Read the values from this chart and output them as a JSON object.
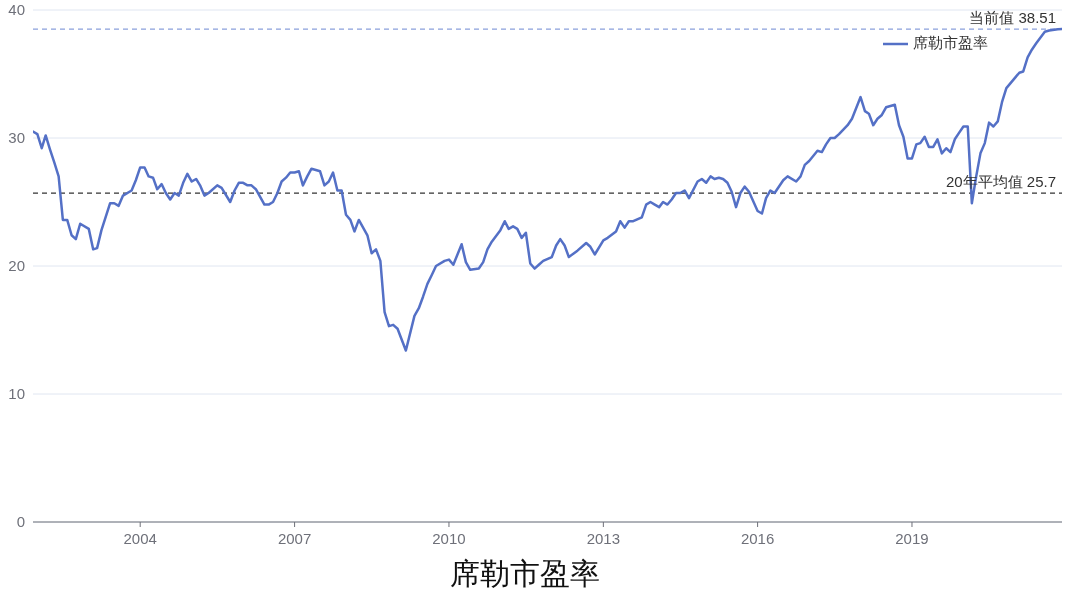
{
  "chart_data": {
    "type": "line",
    "title": "席勒市盈率",
    "x": [
      "2001-12",
      "2002-01",
      "2002-02",
      "2002-03",
      "2002-04",
      "2002-05",
      "2002-06",
      "2002-07",
      "2002-08",
      "2002-09",
      "2002-10",
      "2002-11",
      "2003-01",
      "2003-02",
      "2003-03",
      "2003-04",
      "2003-06",
      "2003-07",
      "2003-08",
      "2003-09",
      "2003-11",
      "2003-12",
      "2004-01",
      "2004-02",
      "2004-03",
      "2004-04",
      "2004-05",
      "2004-06",
      "2004-07",
      "2004-08",
      "2004-09",
      "2004-10",
      "2004-11",
      "2004-12",
      "2005-01",
      "2005-02",
      "2005-03",
      "2005-04",
      "2005-05",
      "2005-07",
      "2005-08",
      "2005-10",
      "2005-11",
      "2005-12",
      "2006-01",
      "2006-02",
      "2006-03",
      "2006-04",
      "2006-06",
      "2006-07",
      "2006-08",
      "2006-09",
      "2006-10",
      "2006-11",
      "2006-12",
      "2007-01",
      "2007-02",
      "2007-03",
      "2007-04",
      "2007-05",
      "2007-06",
      "2007-07",
      "2007-08",
      "2007-09",
      "2007-10",
      "2007-11",
      "2007-12",
      "2008-01",
      "2008-02",
      "2008-03",
      "2008-04",
      "2008-06",
      "2008-07",
      "2008-08",
      "2008-09",
      "2008-10",
      "2008-11",
      "2008-12",
      "2009-01",
      "2009-03",
      "2009-05",
      "2009-06",
      "2009-07",
      "2009-08",
      "2009-09",
      "2009-10",
      "2009-12",
      "2010-01",
      "2010-02",
      "2010-04",
      "2010-05",
      "2010-06",
      "2010-08",
      "2010-09",
      "2010-10",
      "2010-11",
      "2011-01",
      "2011-02",
      "2011-03",
      "2011-04",
      "2011-05",
      "2011-06",
      "2011-07",
      "2011-08",
      "2011-09",
      "2011-10",
      "2011-11",
      "2012-01",
      "2012-02",
      "2012-03",
      "2012-04",
      "2012-05",
      "2012-07",
      "2012-09",
      "2012-10",
      "2012-11",
      "2013-01",
      "2013-02",
      "2013-04",
      "2013-05",
      "2013-06",
      "2013-07",
      "2013-08",
      "2013-10",
      "2013-11",
      "2013-12",
      "2014-01",
      "2014-02",
      "2014-03",
      "2014-04",
      "2014-05",
      "2014-06",
      "2014-07",
      "2014-08",
      "2014-09",
      "2014-11",
      "2014-12",
      "2015-01",
      "2015-02",
      "2015-03",
      "2015-04",
      "2015-05",
      "2015-06",
      "2015-07",
      "2015-08",
      "2015-09",
      "2015-10",
      "2015-11",
      "2016-01",
      "2016-02",
      "2016-03",
      "2016-04",
      "2016-05",
      "2016-07",
      "2016-08",
      "2016-10",
      "2016-11",
      "2016-12",
      "2017-01",
      "2017-03",
      "2017-04",
      "2017-05",
      "2017-06",
      "2017-07",
      "2017-08",
      "2017-10",
      "2017-11",
      "2018-01",
      "2018-02",
      "2018-03",
      "2018-04",
      "2018-05",
      "2018-06",
      "2018-07",
      "2018-09",
      "2018-10",
      "2018-11",
      "2018-12",
      "2019-01",
      "2019-02",
      "2019-03",
      "2019-04",
      "2019-05",
      "2019-06",
      "2019-07",
      "2019-08",
      "2019-09",
      "2019-10",
      "2019-11",
      "2019-12",
      "2020-01",
      "2020-02",
      "2020-03",
      "2020-04",
      "2020-05",
      "2020-06",
      "2020-07",
      "2020-08",
      "2020-09",
      "2020-10",
      "2020-11",
      "2021-01",
      "2021-02",
      "2021-03",
      "2021-04",
      "2021-05",
      "2021-06",
      "2021-08",
      "2021-09",
      "2021-11",
      "2021-12"
    ],
    "series": [
      {
        "name": "席勒市盈率",
        "color": "#5470c6",
        "values": [
          30.5,
          30.3,
          29.2,
          30.2,
          29.1,
          28.1,
          27.0,
          23.6,
          23.6,
          22.4,
          22.1,
          23.3,
          22.9,
          21.3,
          21.4,
          22.8,
          24.9,
          24.9,
          24.7,
          25.5,
          25.9,
          26.7,
          27.7,
          27.7,
          27.0,
          26.9,
          26.0,
          26.4,
          25.7,
          25.2,
          25.7,
          25.5,
          26.5,
          27.2,
          26.6,
          26.8,
          26.3,
          25.5,
          25.7,
          26.3,
          26.1,
          25.0,
          25.9,
          26.5,
          26.5,
          26.3,
          26.3,
          26.0,
          24.8,
          24.8,
          25.0,
          25.7,
          26.6,
          26.9,
          27.3,
          27.3,
          27.4,
          26.3,
          27.0,
          27.6,
          27.5,
          27.4,
          26.3,
          26.6,
          27.3,
          25.9,
          25.9,
          24.0,
          23.6,
          22.7,
          23.6,
          22.4,
          21.0,
          21.3,
          20.4,
          16.4,
          15.3,
          15.4,
          15.1,
          13.4,
          16.1,
          16.7,
          17.6,
          18.6,
          19.3,
          20.0,
          20.4,
          20.5,
          20.1,
          21.7,
          20.3,
          19.7,
          19.8,
          20.3,
          21.3,
          21.9,
          22.8,
          23.5,
          22.9,
          23.1,
          22.9,
          22.2,
          22.6,
          20.2,
          19.8,
          20.1,
          20.4,
          20.7,
          21.6,
          22.1,
          21.6,
          20.7,
          21.2,
          21.8,
          21.5,
          20.9,
          22.0,
          22.2,
          22.7,
          23.5,
          23.0,
          23.5,
          23.5,
          23.8,
          24.8,
          25.0,
          24.8,
          24.6,
          25.0,
          24.8,
          25.2,
          25.7,
          25.7,
          25.9,
          25.3,
          26.6,
          26.8,
          26.5,
          27.0,
          26.8,
          26.9,
          26.8,
          26.5,
          25.8,
          24.6,
          25.7,
          26.2,
          25.8,
          24.3,
          24.1,
          25.3,
          25.9,
          25.7,
          26.7,
          27.0,
          26.6,
          27.0,
          27.9,
          28.2,
          29.0,
          28.9,
          29.5,
          30.0,
          30.0,
          30.3,
          31.0,
          31.5,
          33.2,
          32.1,
          31.9,
          31.0,
          31.5,
          31.8,
          32.4,
          32.6,
          31.0,
          30.1,
          28.4,
          28.4,
          29.5,
          29.6,
          30.1,
          29.3,
          29.3,
          29.9,
          28.8,
          29.2,
          28.9,
          29.9,
          30.4,
          30.9,
          30.9,
          24.9,
          27.0,
          28.8,
          29.6,
          31.2,
          30.9,
          31.3,
          32.8,
          33.9,
          34.7,
          35.1,
          35.2,
          36.3,
          36.9,
          37.4,
          38.3,
          38.4,
          38.5,
          38.51
        ]
      }
    ],
    "xlim": [
      "2001-12",
      "2021-12"
    ],
    "xticks": [
      "2004",
      "2007",
      "2010",
      "2013",
      "2016",
      "2019"
    ],
    "ylim": [
      0,
      40
    ],
    "yticks": [
      0,
      10,
      20,
      30,
      40
    ],
    "grid": "y",
    "legend": "top right",
    "ref_lines": [
      {
        "axis": "y",
        "value": 38.51,
        "label": "当前值 38.51",
        "color": "#8aa0dc",
        "line_style": "dashed"
      },
      {
        "axis": "y",
        "value": 25.7,
        "label": "20年平均值 25.7",
        "color": "#333333",
        "line_style": "dashed"
      }
    ]
  }
}
